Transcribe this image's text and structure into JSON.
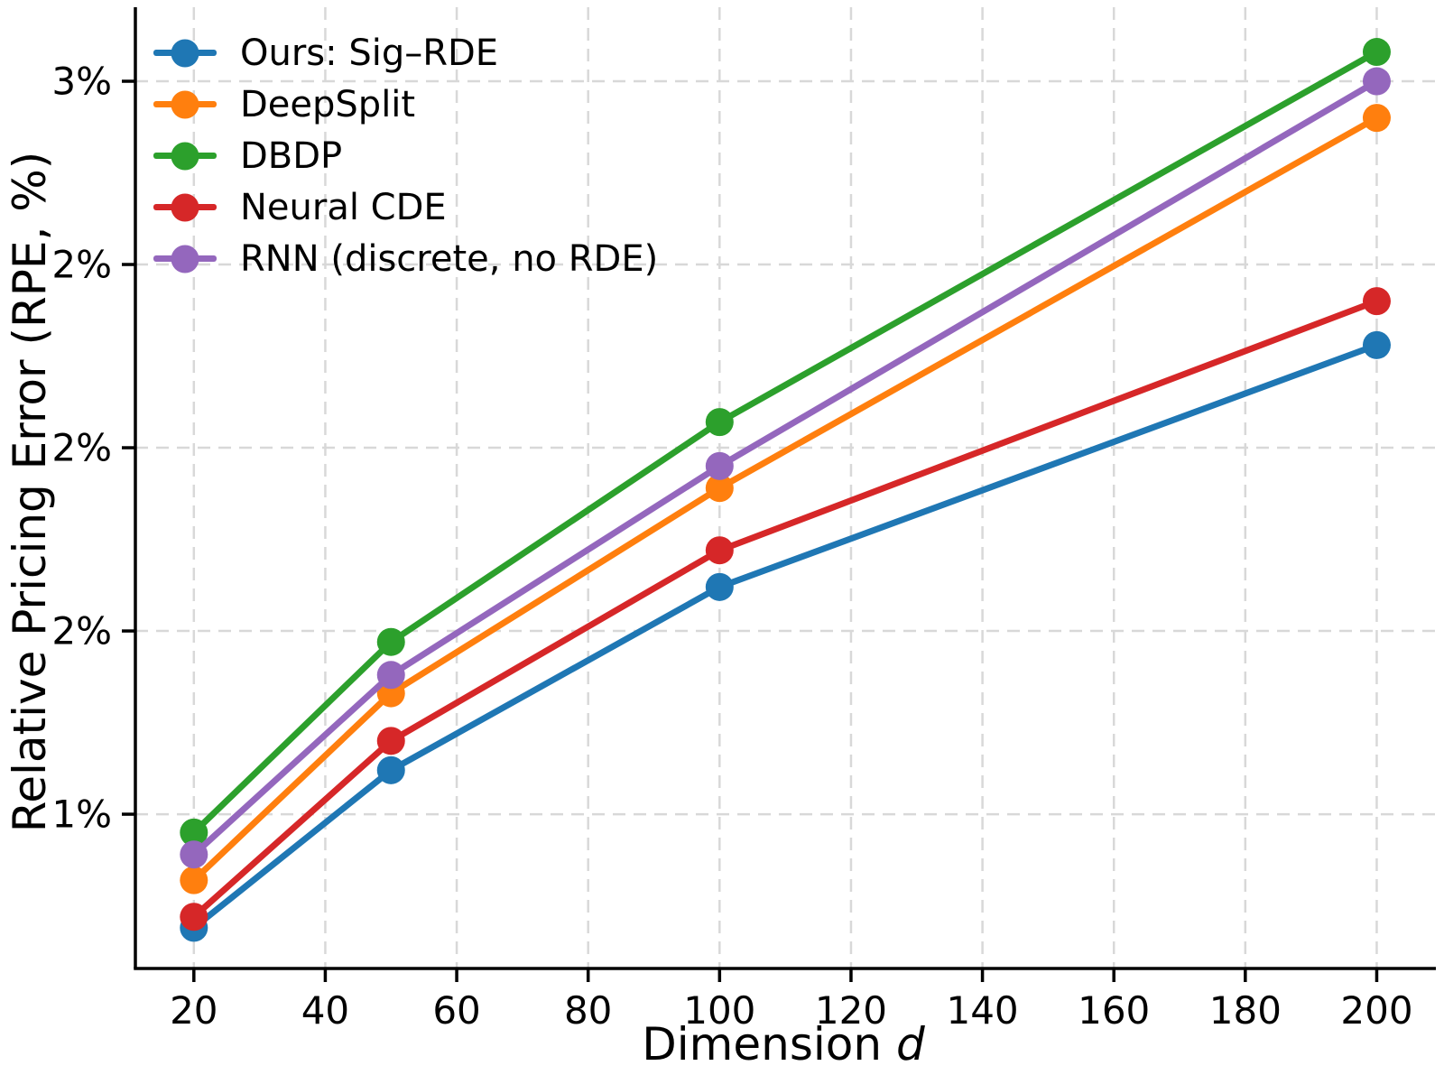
{
  "chart_data": {
    "type": "line",
    "title": "",
    "xlabel": "Dimension",
    "xlabel_var": "d",
    "ylabel": "Relative Pricing Error (RPE, %)",
    "x": [
      20,
      50,
      100,
      200
    ],
    "x_ticks": [
      20,
      40,
      60,
      80,
      100,
      120,
      140,
      160,
      180,
      200
    ],
    "y_ticks": [
      {
        "value": 1.0,
        "label": "1%"
      },
      {
        "value": 1.5,
        "label": "2%"
      },
      {
        "value": 2.0,
        "label": "2%"
      },
      {
        "value": 2.5,
        "label": "2%"
      },
      {
        "value": 3.0,
        "label": "3%"
      }
    ],
    "xlim": [
      11.1,
      209.0
    ],
    "ylim": [
      0.579,
      3.202
    ],
    "grid": true,
    "grid_style": "dashed",
    "legend_position": "upper left",
    "marker": "circle",
    "series": [
      {
        "name": "Ours: Sig–RDE",
        "color": "#1f77b4",
        "values": [
          0.69,
          1.12,
          1.62,
          2.28
        ]
      },
      {
        "name": "DeepSplit",
        "color": "#ff7f0e",
        "values": [
          0.82,
          1.33,
          1.89,
          2.9
        ]
      },
      {
        "name": "DBDP",
        "color": "#2ca02c",
        "values": [
          0.95,
          1.47,
          2.07,
          3.08
        ]
      },
      {
        "name": "Neural CDE",
        "color": "#d62728",
        "values": [
          0.72,
          1.2,
          1.72,
          2.4
        ]
      },
      {
        "name": "RNN (discrete, no RDE)",
        "color": "#9467bd",
        "values": [
          0.89,
          1.38,
          1.95,
          3.0
        ]
      }
    ],
    "colors": {
      "grid": "#d8d8d8",
      "spine": "#000000",
      "text": "#000000",
      "background": "#ffffff"
    }
  }
}
